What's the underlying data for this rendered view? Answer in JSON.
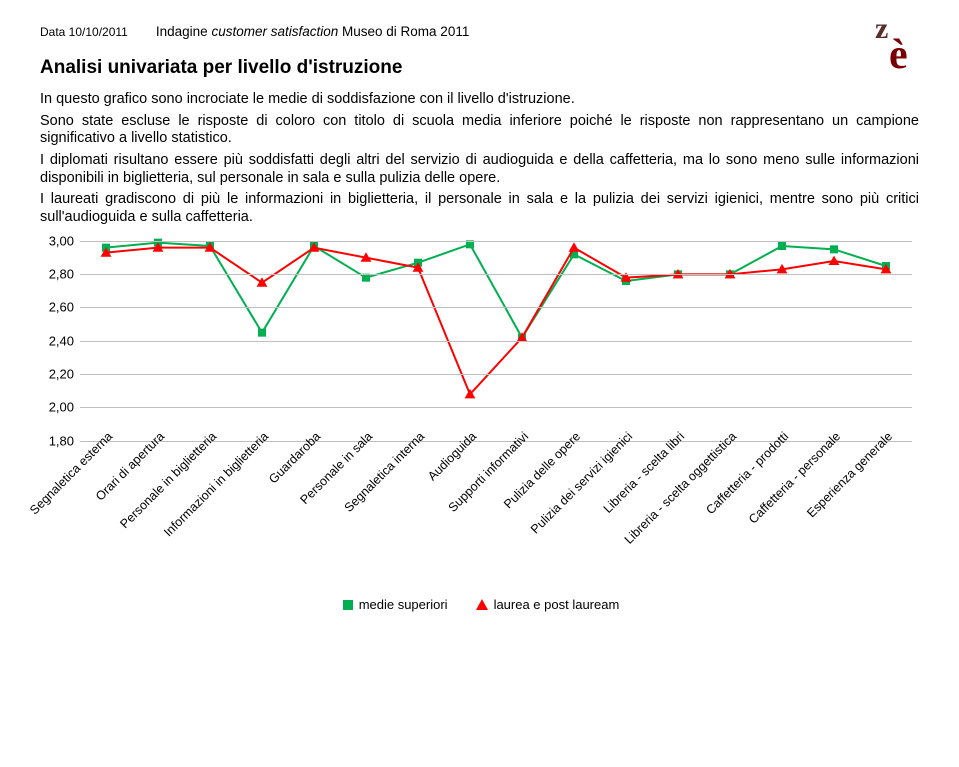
{
  "header": {
    "date": "Data 10/10/2011",
    "survey_prefix": "Indagine",
    "survey_italic": "customer satisfaction",
    "survey_suffix": "Museo di Roma 2011"
  },
  "heading": "Analisi univariata per livello d'istruzione",
  "paragraphs": [
    "In questo grafico sono incrociate le medie di soddisfazione con il livello d'istruzione.",
    "Sono state escluse le risposte di coloro con titolo di scuola media inferiore poiché le risposte non rappresentano un campione significativo a livello statistico.",
    "I diplomati risultano essere più soddisfatti degli altri del servizio di audioguida e della caffetteria, ma lo sono meno sulle informazioni disponibili in biglietteria, sul personale in sala e sulla pulizia delle opere.",
    "I laureati gradiscono di più le informazioni in biglietteria, il personale in sala e la pulizia dei servizi igienici, mentre sono più critici sull'audioguida e sulla caffetteria."
  ],
  "chart": {
    "type": "line",
    "ylim": [
      1.8,
      3.0
    ],
    "yticks": [
      3.0,
      2.8,
      2.6,
      2.4,
      2.2,
      2.0,
      1.8
    ],
    "ytick_labels": [
      "3,00",
      "2,80",
      "2,60",
      "2,40",
      "2,20",
      "2,00",
      "1,80"
    ],
    "grid_color": "#bfbfbf",
    "background_color": "#ffffff",
    "categories": [
      "Segnaletica esterna",
      "Orari di apertura",
      "Personale in biglietteria",
      "Informazioni in biglietteria",
      "Guardaroba",
      "Personale in sala",
      "Segnaletica interna",
      "Audioguida",
      "Supporti informativi",
      "Pulizia delle opere",
      "Pulizia dei servizi igienici",
      "Libreria - scelta libri",
      "Libreria - scelta oggettistica",
      "Caffetteria - prodotti",
      "Caffetteria - personale",
      "Esperienza generale"
    ],
    "series": [
      {
        "name": "medie superiori",
        "color": "#00b050",
        "marker": "square",
        "marker_size": 8,
        "line_width": 2,
        "values": [
          2.96,
          2.99,
          2.97,
          2.45,
          2.97,
          2.78,
          2.87,
          2.98,
          2.42,
          2.92,
          2.76,
          2.8,
          2.8,
          2.97,
          2.95,
          2.85
        ]
      },
      {
        "name": "laurea e post lauream",
        "color": "#ff0000",
        "marker": "triangle",
        "marker_size": 9,
        "line_width": 2,
        "values": [
          2.93,
          2.96,
          2.96,
          2.75,
          2.96,
          2.9,
          2.84,
          2.08,
          2.42,
          2.96,
          2.78,
          2.8,
          2.8,
          2.83,
          2.88,
          2.83
        ]
      }
    ],
    "legend": {
      "items": [
        "medie superiori",
        "laurea e post lauream"
      ]
    },
    "label_fontsize": 12.5,
    "tick_fontsize": 13
  },
  "logo": {
    "name": "ze-logo",
    "color_main": "#5a2d2d",
    "color_accent": "#7a0000"
  }
}
